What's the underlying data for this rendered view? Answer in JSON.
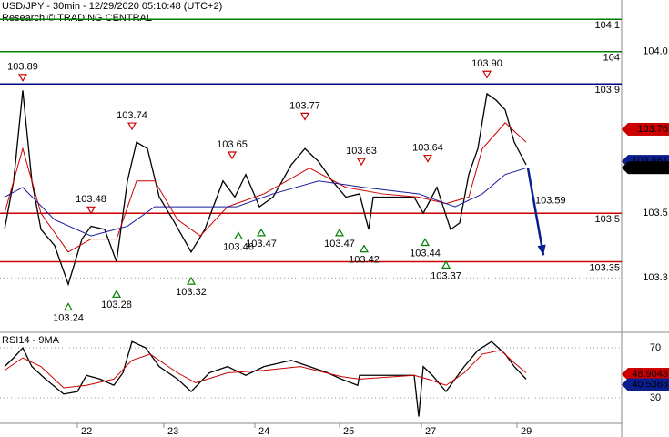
{
  "chart_data": [
    {
      "type": "line",
      "title": "USD/JPY - 30min - 12/29/2020 05:10:48 (UTC+2)",
      "subtitle": "Research © TRADING CENTRAL",
      "xlim": [
        0,
        341.5
      ],
      "ylim": [
        103.14,
        104.16
      ],
      "yticks": [
        103.3,
        103.5,
        {
          "value": 104.0,
          "label": "104.0"
        }
      ],
      "grid": true,
      "series": [
        {
          "color": "#000000",
          "x": [
            2.5,
            7.5,
            12.5,
            17.5,
            22.5,
            30,
            37.5,
            45,
            50,
            57.5,
            64,
            70,
            75,
            81,
            87.5,
            95,
            105,
            112.5,
            122.5,
            129,
            135,
            142.5,
            150,
            160,
            167.5,
            175,
            182.5,
            190,
            197.5,
            202.5,
            205,
            212.5,
            227.5,
            232.5,
            240,
            247.5,
            252.5,
            257.5,
            262.5,
            267.5,
            272.5,
            277.5,
            282.5,
            289
          ],
          "values": [
            103.45,
            103.6,
            103.88,
            103.6,
            103.45,
            103.4,
            103.28,
            103.42,
            103.46,
            103.45,
            103.35,
            103.6,
            103.72,
            103.7,
            103.55,
            103.48,
            103.38,
            103.45,
            103.6,
            103.55,
            103.62,
            103.52,
            103.55,
            103.65,
            103.7,
            103.66,
            103.6,
            103.55,
            103.56,
            103.45,
            103.55,
            103.55,
            103.55,
            103.5,
            103.58,
            103.45,
            103.47,
            103.62,
            103.7,
            103.87,
            103.85,
            103.82,
            103.72,
            103.65
          ]
        },
        {
          "color": "#cc0000",
          "x": [
            2.5,
            12.5,
            22.5,
            37.5,
            50,
            64,
            75,
            85,
            97.5,
            110,
            125,
            145,
            170,
            190,
            210,
            230,
            245,
            257.5,
            265,
            277.5,
            289
          ],
          "values": [
            103.5,
            103.7,
            103.5,
            103.38,
            103.42,
            103.42,
            103.6,
            103.6,
            103.48,
            103.43,
            103.52,
            103.56,
            103.64,
            103.58,
            103.56,
            103.55,
            103.53,
            103.55,
            103.7,
            103.78,
            103.72
          ]
        },
        {
          "color": "#1a1a9c",
          "x": [
            2.5,
            12.5,
            30,
            50,
            70,
            85,
            105,
            130,
            150,
            175,
            200,
            230,
            250,
            265,
            277.5,
            289
          ],
          "values": [
            103.55,
            103.58,
            103.48,
            103.43,
            103.46,
            103.52,
            103.52,
            103.52,
            103.56,
            103.6,
            103.58,
            103.56,
            103.52,
            103.56,
            103.62,
            103.64
          ]
        }
      ],
      "levels": {
        "values": [
          104.1,
          104,
          103.9,
          103.5,
          103.35
        ],
        "colors": [
          "#008000",
          "#008000",
          "#00008b",
          "#cc0000",
          "#cc0000"
        ]
      },
      "markers": {
        "x": [
          12.5,
          50,
          72.5,
          127.5,
          167.5,
          198.5,
          235,
          267.5,
          37.5,
          64,
          105,
          131,
          143.5,
          186.5,
          200,
          233.5,
          245
        ],
        "values": [
          103.89,
          103.48,
          103.74,
          103.65,
          103.77,
          103.63,
          103.64,
          103.9,
          103.24,
          103.28,
          103.32,
          103.46,
          103.47,
          103.47,
          103.42,
          103.44,
          103.37
        ],
        "value_labels": [
          "103.89",
          "103.48",
          "103.74",
          "103.65",
          "103.77",
          "103.63",
          "103.64",
          "103.90",
          "103.24",
          "103.28",
          "103.32",
          "103.46",
          "103.47",
          "103.47",
          "103.42",
          "103.44",
          "103.37"
        ],
        "direction": [
          "down",
          "down",
          "down",
          "down",
          "down",
          "down",
          "down",
          "down",
          "up",
          "up",
          "up",
          "up",
          "up",
          "up",
          "up",
          "up",
          "up"
        ]
      },
      "forecast": {
        "x": [
          290,
          298.5
        ],
        "values": [
          103.64,
          103.37
        ],
        "label": "103.59",
        "color": "#0a1f8f"
      },
      "price_boxes": {
        "values": [
          103.76,
          103.661,
          103.641
        ],
        "colors": [
          "#cc0000",
          "#0a1f8f",
          "#000000"
        ]
      }
    },
    {
      "type": "line",
      "title": "RSI14 - 9MA",
      "xlim": [
        0,
        341.5
      ],
      "ylim": [
        9.6,
        82.4
      ],
      "yticks": [
        30,
        70
      ],
      "xticks": [
        {
          "value": 42.5,
          "label": "22"
        },
        {
          "value": 90,
          "label": "23"
        },
        {
          "value": 140,
          "label": "24"
        },
        {
          "value": 186.5,
          "label": "25"
        },
        {
          "value": 231.5,
          "label": "27"
        },
        {
          "value": 284,
          "label": "29"
        }
      ],
      "grid": true,
      "series": [
        {
          "color": "#000000",
          "x": [
            2.5,
            7.5,
            12.5,
            17.5,
            25,
            35,
            42.5,
            47.5,
            55,
            62.5,
            67.5,
            72.5,
            80,
            87.5,
            97.5,
            105,
            115,
            125,
            135,
            145,
            160,
            170,
            180,
            187.5,
            196.5,
            197.5,
            202.5,
            227.5,
            230,
            232.5,
            237.5,
            245,
            255,
            262.5,
            270,
            277.5,
            282.5,
            289
          ],
          "values": [
            55,
            62,
            70,
            55,
            45,
            33,
            35,
            48,
            45,
            40,
            50,
            75,
            70,
            55,
            45,
            35,
            50,
            55,
            48,
            55,
            60,
            55,
            50,
            45,
            40,
            48,
            48,
            48,
            15,
            55,
            48,
            35,
            55,
            68,
            75,
            65,
            55,
            45
          ]
        },
        {
          "color": "#cc0000",
          "x": [
            2.5,
            12.5,
            22.5,
            35,
            47.5,
            62.5,
            72.5,
            82.5,
            97.5,
            107.5,
            125,
            145,
            165,
            187.5,
            197.5,
            227.5,
            235,
            245,
            255,
            265,
            275,
            282.5,
            289
          ],
          "values": [
            52,
            62,
            55,
            38,
            40,
            45,
            60,
            65,
            50,
            42,
            50,
            52,
            55,
            47,
            45,
            48,
            45,
            40,
            50,
            65,
            68,
            58,
            50
          ]
        }
      ],
      "price_boxes": {
        "values": [
          48.9043,
          40.5368
        ],
        "colors": [
          "#cc0000",
          "#0a1f8f"
        ]
      }
    }
  ]
}
